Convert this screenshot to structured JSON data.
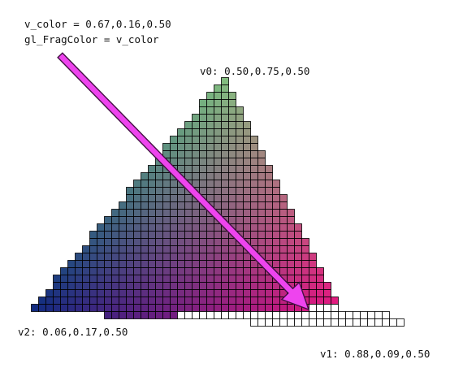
{
  "code": {
    "line1": "v_color = 0.67,0.16,0.50",
    "line2": "gl_FragColor = v_color"
  },
  "vertices": {
    "v0": {
      "label": "v0: 0.50,0.75,0.50",
      "color": [
        0.5,
        0.75,
        0.5
      ]
    },
    "v1": {
      "label": "v1: 0.88,0.09,0.50",
      "color": [
        0.88,
        0.09,
        0.5
      ]
    },
    "v2": {
      "label": "v2: 0.06,0.17,0.50",
      "color": [
        0.06,
        0.17,
        0.5
      ]
    }
  },
  "fragment_color": [
    0.67,
    0.16,
    0.5
  ],
  "colors": {
    "arrow_fill": "#ee44ee",
    "arrow_stroke": "#441144",
    "pixel_grid": "#000000",
    "uncovered_pixel": "#ffffff"
  }
}
